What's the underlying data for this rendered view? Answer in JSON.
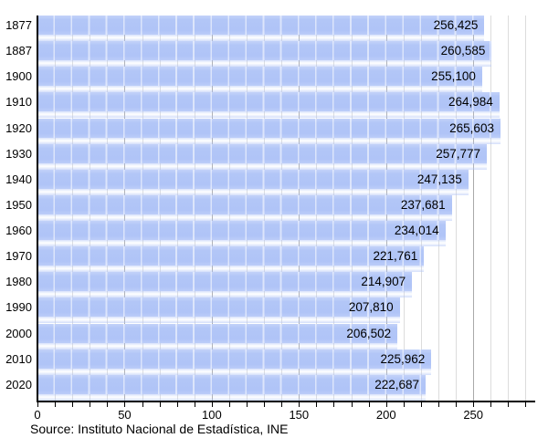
{
  "chart_data": {
    "type": "bar",
    "orientation": "horizontal",
    "title": "",
    "xlabel": "",
    "ylabel": "",
    "categories": [
      "1877",
      "1887",
      "1900",
      "1910",
      "1920",
      "1930",
      "1940",
      "1950",
      "1960",
      "1970",
      "1980",
      "1990",
      "2000",
      "2010",
      "2020"
    ],
    "values": [
      256425,
      260585,
      255100,
      264984,
      265603,
      257777,
      247135,
      237681,
      234014,
      221761,
      214907,
      207810,
      206502,
      225962,
      222687
    ],
    "value_labels": [
      "256,425",
      "260,585",
      "255,100",
      "264,984",
      "265,603",
      "257,777",
      "247,135",
      "237,681",
      "234,014",
      "221,761",
      "214,907",
      "207,810",
      "206,502",
      "225,962",
      "222,687"
    ],
    "axis_unit_divisor": 1000,
    "xlim": [
      0,
      285
    ],
    "x_tick_minor_step": 10,
    "x_tick_minor_max": 280,
    "x_tick_major_step": 50,
    "x_tick_labels": [
      "0",
      "50",
      "100",
      "150",
      "200",
      "250"
    ],
    "grid": "vertical gridlines, minor every 10 (thousands), major every 50",
    "legend": "none",
    "source": "Source: Instituto Nacional de Estadística, INE",
    "colors": {
      "bar": "#b2c6f7",
      "grid_minor": "#dcdcdc",
      "grid_major": "#a9a9a9",
      "axis": "#000000",
      "text": "#000000",
      "background": "#ffffff"
    }
  }
}
